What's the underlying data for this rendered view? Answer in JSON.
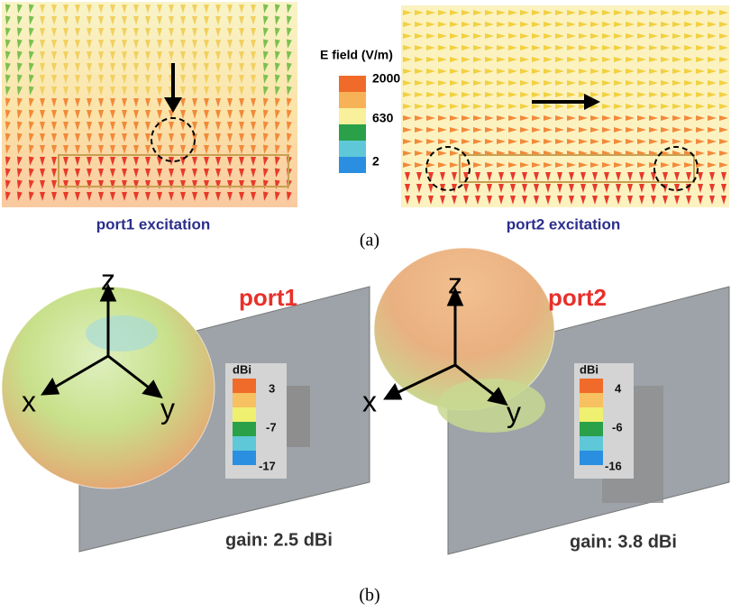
{
  "panel_a": {
    "legend": {
      "title": "E field (V/m)",
      "labels": [
        "2000",
        "630",
        "2"
      ]
    },
    "captions": [
      "port1 excitation",
      "port2 excitation"
    ],
    "label": "(a)"
  },
  "panel_b": {
    "plots": [
      {
        "title": "port1",
        "axes": [
          "z",
          "x",
          "y"
        ],
        "unit": "dBi",
        "labels": [
          "3",
          "-7",
          "-17"
        ],
        "gain": "gain: 2.5 dBi"
      },
      {
        "title": "port2",
        "axes": [
          "z",
          "x",
          "y"
        ],
        "unit": "dBi",
        "labels": [
          "4",
          "-6",
          "-16"
        ],
        "gain": "gain: 3.8 dBi"
      }
    ],
    "label": "(b)"
  }
}
